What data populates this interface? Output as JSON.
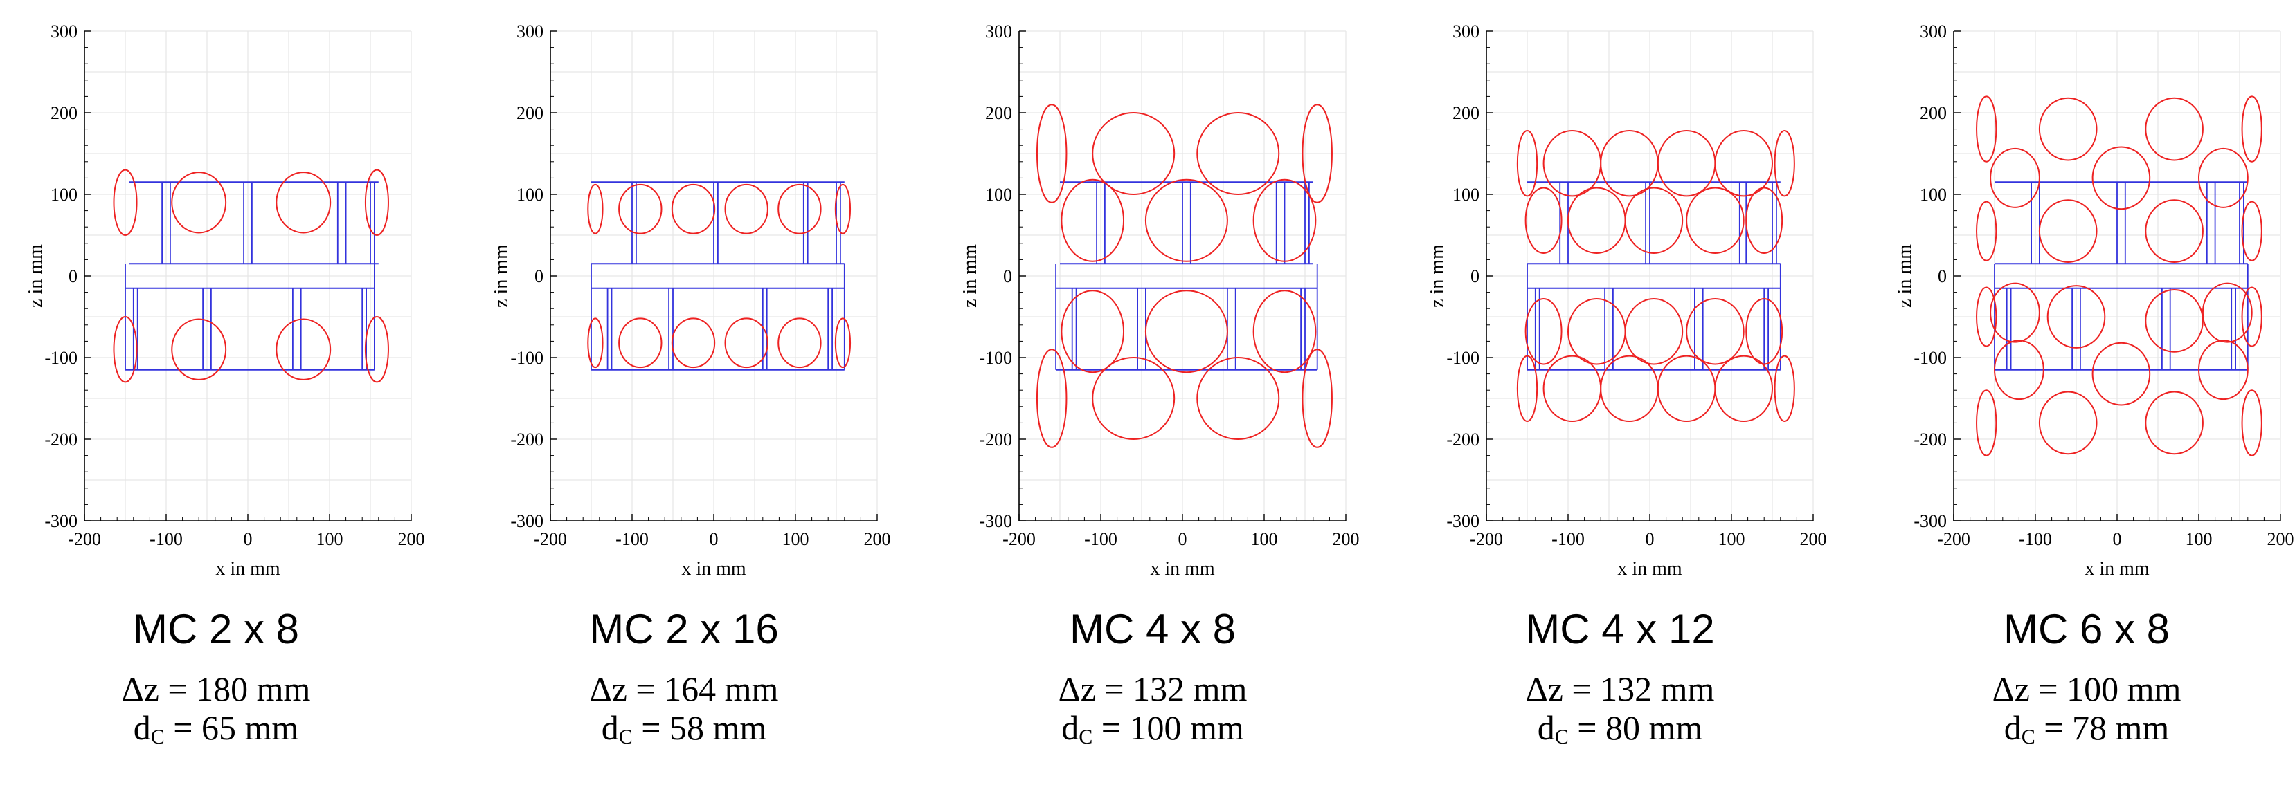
{
  "colors": {
    "coil": "#ee2222",
    "frame": "#3333dd",
    "grid": "#e6e6e6",
    "axis": "#000000"
  },
  "chart_data": [
    {
      "type": "line",
      "title": "MC 2 x 8",
      "xlabel": "x in mm",
      "ylabel": "z in mm",
      "xlim": [
        -200,
        200
      ],
      "ylim": [
        -300,
        300
      ],
      "xticks": [
        -200,
        -100,
        0,
        100,
        200
      ],
      "yticks": [
        -300,
        -200,
        -100,
        0,
        100,
        200,
        300
      ],
      "grid": true,
      "delta_z": "Δz = 180 mm",
      "d_c_prefix": "d",
      "d_c_sub": "C",
      "d_c_value": " = 65 mm",
      "coils": [
        {
          "cx": -60,
          "cz": 90,
          "rx": 33,
          "rz": 37
        },
        {
          "cx": 68,
          "cz": 90,
          "rx": 33,
          "rz": 37
        },
        {
          "cx": -150,
          "cz": 90,
          "rx": 14,
          "rz": 40
        },
        {
          "cx": 158,
          "cz": 90,
          "rx": 14,
          "rz": 40
        },
        {
          "cx": -60,
          "cz": -90,
          "rx": 33,
          "rz": 37
        },
        {
          "cx": 68,
          "cz": -90,
          "rx": 33,
          "rz": 37
        },
        {
          "cx": -150,
          "cz": -90,
          "rx": 14,
          "rz": 40
        },
        {
          "cx": 158,
          "cz": -90,
          "rx": 14,
          "rz": 40
        }
      ],
      "frame": {
        "layers": [
          [
            15,
            115
          ],
          [
            -115,
            -15
          ]
        ],
        "ranges": [
          [
            -145,
            160
          ],
          [
            -150,
            155
          ]
        ],
        "posts": [
          [
            -105,
            -95,
            -5,
            5,
            110,
            120,
            150,
            155
          ],
          [
            -140,
            -135,
            -55,
            -45,
            55,
            65,
            140,
            145
          ]
        ]
      }
    },
    {
      "type": "line",
      "title": "MC 2 x 16",
      "xlabel": "x in mm",
      "ylabel": "z in mm",
      "xlim": [
        -200,
        200
      ],
      "ylim": [
        -300,
        300
      ],
      "xticks": [
        -200,
        -100,
        0,
        100,
        200
      ],
      "yticks": [
        -300,
        -200,
        -100,
        0,
        100,
        200,
        300
      ],
      "grid": true,
      "delta_z": "Δz = 164 mm",
      "d_c_prefix": "d",
      "d_c_sub": "C",
      "d_c_value": " = 58 mm",
      "coils": [
        {
          "cx": -90,
          "cz": 82,
          "rx": 26,
          "rz": 30
        },
        {
          "cx": -25,
          "cz": 82,
          "rx": 26,
          "rz": 30
        },
        {
          "cx": 40,
          "cz": 82,
          "rx": 26,
          "rz": 30
        },
        {
          "cx": 105,
          "cz": 82,
          "rx": 26,
          "rz": 30
        },
        {
          "cx": -145,
          "cz": 82,
          "rx": 9,
          "rz": 30
        },
        {
          "cx": 158,
          "cz": 82,
          "rx": 9,
          "rz": 30
        },
        {
          "cx": -90,
          "cz": -82,
          "rx": 26,
          "rz": 30
        },
        {
          "cx": -25,
          "cz": -82,
          "rx": 26,
          "rz": 30
        },
        {
          "cx": 40,
          "cz": -82,
          "rx": 26,
          "rz": 30
        },
        {
          "cx": 105,
          "cz": -82,
          "rx": 26,
          "rz": 30
        },
        {
          "cx": -145,
          "cz": -82,
          "rx": 9,
          "rz": 30
        },
        {
          "cx": 158,
          "cz": -82,
          "rx": 9,
          "rz": 30
        }
      ],
      "frame": {
        "layers": [
          [
            15,
            115
          ],
          [
            -115,
            -15
          ]
        ],
        "ranges": [
          [
            -150,
            160
          ],
          [
            -150,
            160
          ]
        ],
        "posts": [
          [
            -100,
            -95,
            0,
            5,
            110,
            115,
            150,
            155
          ],
          [
            -130,
            -125,
            -55,
            -50,
            60,
            65,
            140,
            145
          ]
        ]
      }
    },
    {
      "type": "line",
      "title": "MC 4 x 8",
      "xlabel": "x in mm",
      "ylabel": "z in mm",
      "xlim": [
        -200,
        200
      ],
      "ylim": [
        -300,
        300
      ],
      "xticks": [
        -200,
        -100,
        0,
        100,
        200
      ],
      "yticks": [
        -300,
        -200,
        -100,
        0,
        100,
        200,
        300
      ],
      "grid": true,
      "delta_z": "Δz = 132 mm",
      "d_c_prefix": "d",
      "d_c_sub": "C",
      "d_c_value": " = 100 mm",
      "coils": [
        {
          "cx": -60,
          "cz": 150,
          "rx": 50,
          "rz": 50
        },
        {
          "cx": 68,
          "cz": 150,
          "rx": 50,
          "rz": 50
        },
        {
          "cx": -110,
          "cz": 68,
          "rx": 38,
          "rz": 50
        },
        {
          "cx": 5,
          "cz": 68,
          "rx": 50,
          "rz": 50
        },
        {
          "cx": 125,
          "cz": 68,
          "rx": 38,
          "rz": 50
        },
        {
          "cx": -160,
          "cz": 150,
          "rx": 18,
          "rz": 60
        },
        {
          "cx": 165,
          "cz": 150,
          "rx": 18,
          "rz": 60
        },
        {
          "cx": -110,
          "cz": -68,
          "rx": 38,
          "rz": 50
        },
        {
          "cx": 5,
          "cz": -68,
          "rx": 50,
          "rz": 50
        },
        {
          "cx": 125,
          "cz": -68,
          "rx": 38,
          "rz": 50
        },
        {
          "cx": -60,
          "cz": -150,
          "rx": 50,
          "rz": 50
        },
        {
          "cx": 68,
          "cz": -150,
          "rx": 50,
          "rz": 50
        },
        {
          "cx": -160,
          "cz": -150,
          "rx": 18,
          "rz": 60
        },
        {
          "cx": 165,
          "cz": -150,
          "rx": 18,
          "rz": 60
        }
      ],
      "frame": {
        "layers": [
          [
            15,
            115
          ],
          [
            -115,
            -15
          ]
        ],
        "ranges": [
          [
            -150,
            160
          ],
          [
            -155,
            165
          ]
        ],
        "posts": [
          [
            -105,
            -95,
            0,
            10,
            115,
            125,
            150,
            155
          ],
          [
            -135,
            -130,
            -55,
            -45,
            55,
            65,
            145,
            150
          ]
        ]
      }
    },
    {
      "type": "line",
      "title": "MC 4 x 12",
      "xlabel": "x in mm",
      "ylabel": "z in mm",
      "xlim": [
        -200,
        200
      ],
      "ylim": [
        -300,
        300
      ],
      "xticks": [
        -200,
        -100,
        0,
        100,
        200
      ],
      "yticks": [
        -300,
        -200,
        -100,
        0,
        100,
        200,
        300
      ],
      "grid": true,
      "delta_z": "Δz = 132 mm",
      "d_c_prefix": "d",
      "d_c_sub": "C",
      "d_c_value": " = 80 mm",
      "coils": [
        {
          "cx": -95,
          "cz": 138,
          "rx": 35,
          "rz": 40
        },
        {
          "cx": -25,
          "cz": 138,
          "rx": 35,
          "rz": 40
        },
        {
          "cx": 45,
          "cz": 138,
          "rx": 35,
          "rz": 40
        },
        {
          "cx": 115,
          "cz": 138,
          "rx": 35,
          "rz": 40
        },
        {
          "cx": -150,
          "cz": 138,
          "rx": 12,
          "rz": 40
        },
        {
          "cx": 165,
          "cz": 138,
          "rx": 12,
          "rz": 40
        },
        {
          "cx": -130,
          "cz": 68,
          "rx": 22,
          "rz": 40
        },
        {
          "cx": -65,
          "cz": 68,
          "rx": 35,
          "rz": 40
        },
        {
          "cx": 5,
          "cz": 68,
          "rx": 35,
          "rz": 40
        },
        {
          "cx": 80,
          "cz": 68,
          "rx": 35,
          "rz": 40
        },
        {
          "cx": 140,
          "cz": 68,
          "rx": 22,
          "rz": 40
        },
        {
          "cx": -130,
          "cz": -68,
          "rx": 22,
          "rz": 40
        },
        {
          "cx": -65,
          "cz": -68,
          "rx": 35,
          "rz": 40
        },
        {
          "cx": 5,
          "cz": -68,
          "rx": 35,
          "rz": 40
        },
        {
          "cx": 80,
          "cz": -68,
          "rx": 35,
          "rz": 40
        },
        {
          "cx": 140,
          "cz": -68,
          "rx": 22,
          "rz": 40
        },
        {
          "cx": -95,
          "cz": -138,
          "rx": 35,
          "rz": 40
        },
        {
          "cx": -25,
          "cz": -138,
          "rx": 35,
          "rz": 40
        },
        {
          "cx": 45,
          "cz": -138,
          "rx": 35,
          "rz": 40
        },
        {
          "cx": 115,
          "cz": -138,
          "rx": 35,
          "rz": 40
        },
        {
          "cx": -150,
          "cz": -138,
          "rx": 12,
          "rz": 40
        },
        {
          "cx": 165,
          "cz": -138,
          "rx": 12,
          "rz": 40
        }
      ],
      "frame": {
        "layers": [
          [
            15,
            115
          ],
          [
            -115,
            -15
          ]
        ],
        "ranges": [
          [
            -150,
            160
          ],
          [
            -150,
            160
          ]
        ],
        "posts": [
          [
            -110,
            -100,
            -5,
            0,
            110,
            118,
            150,
            155
          ],
          [
            -140,
            -135,
            -55,
            -45,
            55,
            65,
            140,
            145
          ]
        ]
      }
    },
    {
      "type": "line",
      "title": "MC 6 x 8",
      "xlabel": "x in mm",
      "ylabel": "z in mm",
      "xlim": [
        -200,
        200
      ],
      "ylim": [
        -300,
        300
      ],
      "xticks": [
        -200,
        -100,
        0,
        100,
        200
      ],
      "yticks": [
        -300,
        -200,
        -100,
        0,
        100,
        200,
        300
      ],
      "grid": true,
      "delta_z": "Δz = 100 mm",
      "d_c_prefix": "d",
      "d_c_sub": "C",
      "d_c_value": " = 78 mm",
      "coils": [
        {
          "cx": -60,
          "cz": 180,
          "rx": 35,
          "rz": 38
        },
        {
          "cx": 70,
          "cz": 180,
          "rx": 35,
          "rz": 38
        },
        {
          "cx": -160,
          "cz": 180,
          "rx": 12,
          "rz": 40
        },
        {
          "cx": 165,
          "cz": 180,
          "rx": 12,
          "rz": 40
        },
        {
          "cx": -125,
          "cz": 120,
          "rx": 30,
          "rz": 36
        },
        {
          "cx": 5,
          "cz": 120,
          "rx": 35,
          "rz": 38
        },
        {
          "cx": 130,
          "cz": 120,
          "rx": 30,
          "rz": 36
        },
        {
          "cx": -60,
          "cz": 55,
          "rx": 35,
          "rz": 38
        },
        {
          "cx": 70,
          "cz": 55,
          "rx": 35,
          "rz": 38
        },
        {
          "cx": -160,
          "cz": 55,
          "rx": 12,
          "rz": 36
        },
        {
          "cx": 165,
          "cz": 55,
          "rx": 12,
          "rz": 36
        },
        {
          "cx": -125,
          "cz": -45,
          "rx": 30,
          "rz": 36
        },
        {
          "cx": -50,
          "cz": -50,
          "rx": 35,
          "rz": 38
        },
        {
          "cx": 5,
          "cz": -45,
          "rx": 0,
          "rz": 0
        },
        {
          "cx": 70,
          "cz": -55,
          "rx": 35,
          "rz": 38
        },
        {
          "cx": 135,
          "cz": -45,
          "rx": 30,
          "rz": 36
        },
        {
          "cx": -160,
          "cz": -50,
          "rx": 12,
          "rz": 36
        },
        {
          "cx": 165,
          "cz": -50,
          "rx": 12,
          "rz": 36
        },
        {
          "cx": -120,
          "cz": -115,
          "rx": 30,
          "rz": 36
        },
        {
          "cx": 5,
          "cz": -120,
          "rx": 35,
          "rz": 38
        },
        {
          "cx": 130,
          "cz": -115,
          "rx": 30,
          "rz": 36
        },
        {
          "cx": -60,
          "cz": -180,
          "rx": 35,
          "rz": 38
        },
        {
          "cx": 70,
          "cz": -180,
          "rx": 35,
          "rz": 38
        },
        {
          "cx": -160,
          "cz": -180,
          "rx": 12,
          "rz": 40
        },
        {
          "cx": 165,
          "cz": -180,
          "rx": 12,
          "rz": 40
        }
      ],
      "frame": {
        "layers": [
          [
            15,
            115
          ],
          [
            -115,
            -15
          ]
        ],
        "ranges": [
          [
            -150,
            160
          ],
          [
            -150,
            160
          ]
        ],
        "posts": [
          [
            -105,
            -95,
            0,
            10,
            110,
            120,
            150,
            155
          ],
          [
            -135,
            -130,
            -55,
            -45,
            55,
            65,
            140,
            145
          ]
        ]
      }
    }
  ]
}
